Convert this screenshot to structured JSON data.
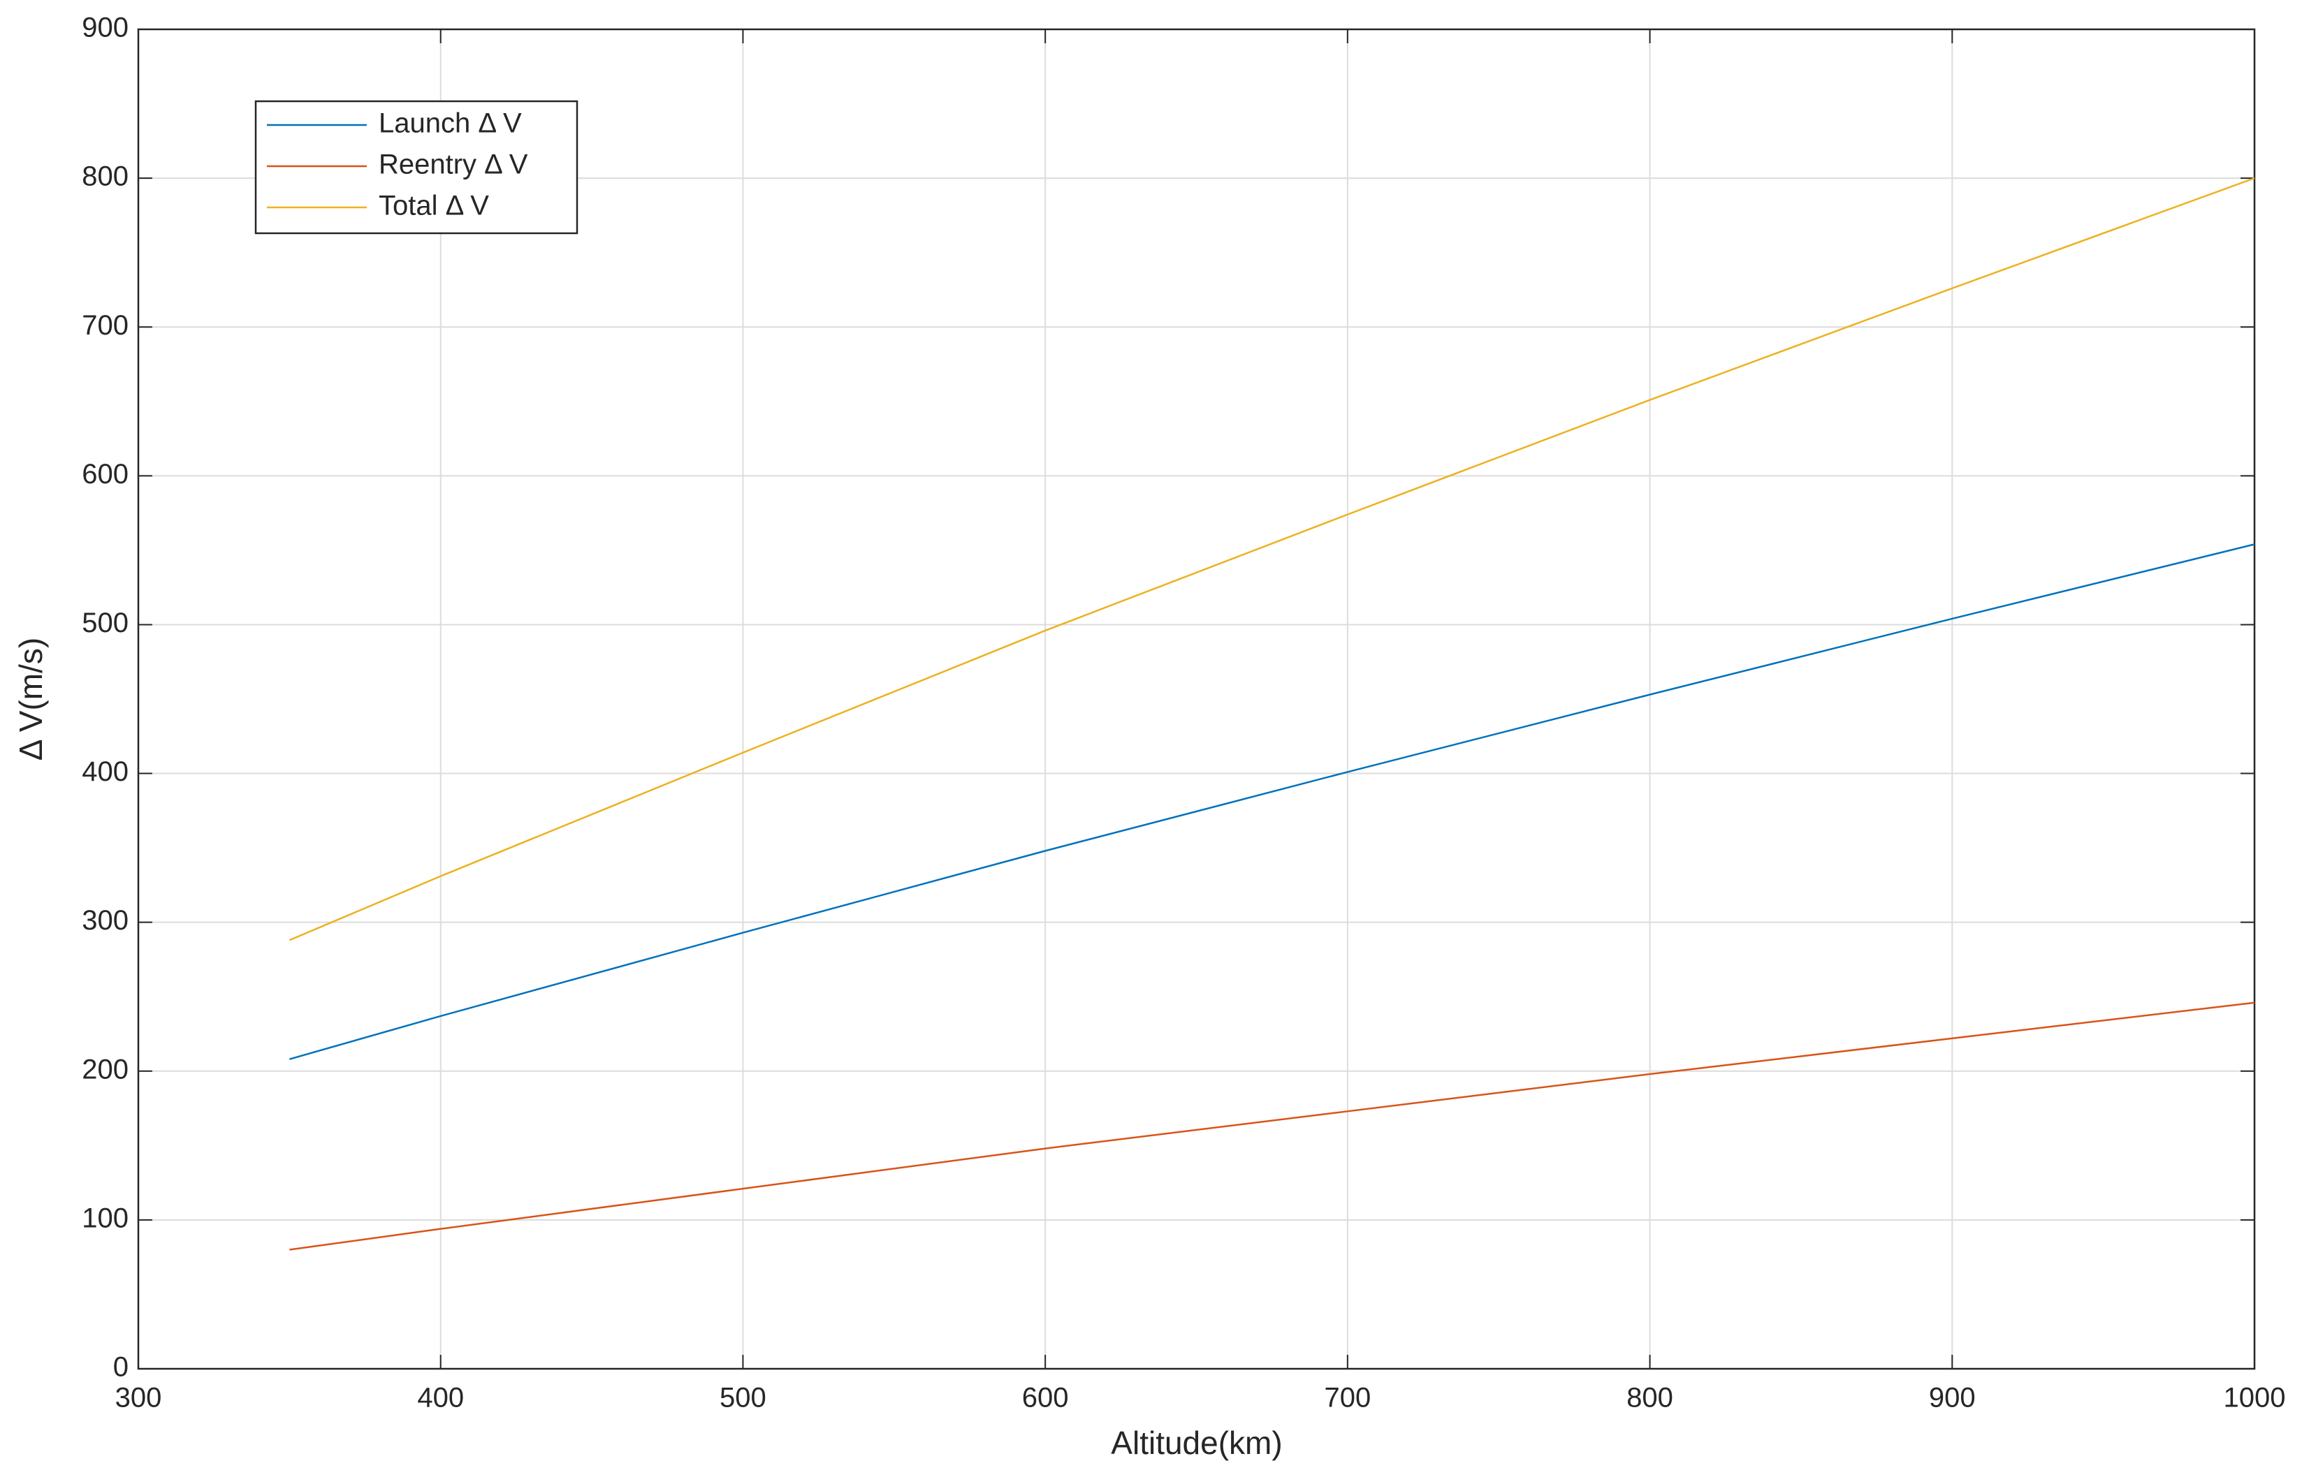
{
  "chart_data": {
    "type": "line",
    "x_label": "Altitude(km)",
    "y_label": "Δ V(m/s)",
    "x": [
      350,
      400,
      500,
      600,
      700,
      800,
      900,
      1000
    ],
    "series": [
      {
        "name": "Launch Δ V",
        "color": "#0072BD",
        "values": [
          208,
          237,
          293,
          348,
          401,
          453,
          504,
          554
        ]
      },
      {
        "name": "Reentry Δ V",
        "color": "#D95319",
        "values": [
          80,
          94,
          121,
          148,
          173,
          198,
          222,
          246
        ]
      },
      {
        "name": "Total Δ V",
        "color": "#EDB120",
        "values": [
          288,
          331,
          414,
          496,
          574,
          651,
          726,
          800
        ]
      }
    ],
    "xlim": [
      300,
      1000
    ],
    "ylim": [
      0,
      900
    ],
    "xticks": [
      300,
      400,
      500,
      600,
      700,
      800,
      900,
      1000
    ],
    "yticks": [
      0,
      100,
      200,
      300,
      400,
      500,
      600,
      700,
      800,
      900
    ],
    "grid": true,
    "legend": "northwest"
  }
}
